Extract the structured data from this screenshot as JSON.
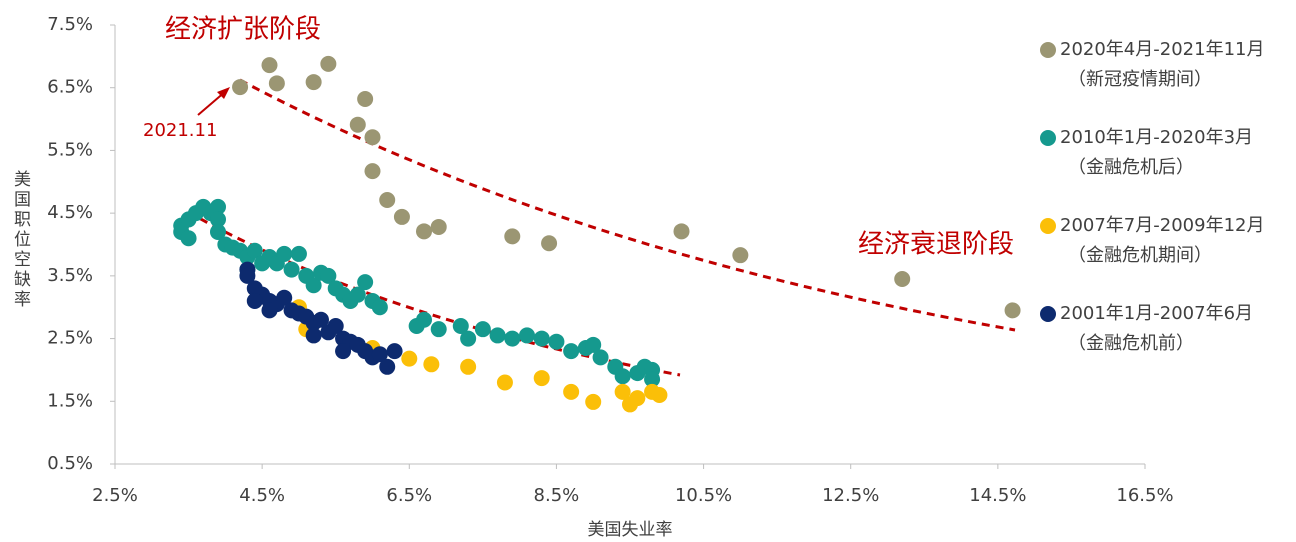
{
  "chart_data": {
    "type": "scatter",
    "xlabel": "美国失业率",
    "ylabel": "美国职位空缺率",
    "annotations": [
      "经济扩张阶段",
      "经济衰退阶段",
      "2021.11"
    ],
    "xlim": [
      2.5,
      16.5
    ],
    "xticks": [
      {
        "value": 2.5,
        "label": "2.5%"
      },
      {
        "value": 4.5,
        "label": "4.5%"
      },
      {
        "value": 6.5,
        "label": "6.5%"
      },
      {
        "value": 8.5,
        "label": "8.5%"
      },
      {
        "value": 10.5,
        "label": "10.5%"
      },
      {
        "value": 12.5,
        "label": "12.5%"
      },
      {
        "value": 14.5,
        "label": "14.5%"
      },
      {
        "value": 16.5,
        "label": "16.5%"
      }
    ],
    "ylim": [
      0.5,
      7.5
    ],
    "yticks": [
      {
        "value": 0.5,
        "label": "0.5%"
      },
      {
        "value": 1.5,
        "label": "1.5%"
      },
      {
        "value": 2.5,
        "label": "2.5%"
      },
      {
        "value": 3.5,
        "label": "3.5%"
      },
      {
        "value": 4.5,
        "label": "4.5%"
      },
      {
        "value": 5.5,
        "label": "5.5%"
      },
      {
        "value": 6.5,
        "label": "6.5%"
      },
      {
        "value": 7.5,
        "label": "7.5%"
      }
    ],
    "series": [
      {
        "name": "2020年4月-2021年11月",
        "note": "（新冠疫情期间）",
        "color": "#9b9673",
        "x": [
          4.2,
          4.6,
          4.7,
          5.2,
          5.4,
          5.9,
          5.8,
          6.0,
          6.0,
          6.2,
          6.4,
          6.7,
          6.9,
          7.9,
          8.4,
          10.2,
          11.0,
          13.2,
          14.7
        ],
        "values": [
          6.51,
          6.86,
          6.57,
          6.59,
          6.88,
          6.32,
          5.91,
          5.71,
          5.17,
          4.71,
          4.44,
          4.21,
          4.28,
          4.13,
          4.02,
          4.21,
          3.83,
          3.45,
          2.95
        ]
      },
      {
        "name": "2010年1月-2020年3月",
        "note": "（金融危机后）",
        "color": "#15998e",
        "x": [
          3.4,
          3.4,
          3.5,
          3.5,
          3.6,
          3.7,
          3.8,
          3.9,
          3.9,
          3.9,
          4.0,
          4.1,
          4.2,
          4.3,
          4.3,
          4.4,
          4.5,
          4.6,
          4.7,
          4.8,
          4.9,
          5.0,
          5.1,
          5.2,
          5.3,
          5.4,
          5.5,
          5.6,
          5.7,
          5.8,
          5.9,
          6.0,
          6.1,
          6.6,
          6.7,
          6.9,
          7.2,
          7.3,
          7.5,
          7.7,
          7.9,
          8.1,
          8.3,
          8.5,
          8.7,
          8.9,
          9.0,
          9.1,
          9.3,
          9.4,
          9.6,
          9.7,
          9.8,
          9.8
        ],
        "values": [
          4.3,
          4.2,
          4.4,
          4.1,
          4.5,
          4.6,
          4.5,
          4.6,
          4.4,
          4.2,
          4.0,
          3.95,
          3.9,
          3.8,
          3.6,
          3.9,
          3.7,
          3.8,
          3.7,
          3.85,
          3.6,
          3.85,
          3.5,
          3.35,
          3.55,
          3.5,
          3.3,
          3.2,
          3.1,
          3.2,
          3.4,
          3.1,
          3.0,
          2.7,
          2.8,
          2.65,
          2.7,
          2.5,
          2.65,
          2.55,
          2.5,
          2.55,
          2.5,
          2.45,
          2.3,
          2.35,
          2.4,
          2.2,
          2.05,
          1.9,
          1.95,
          2.05,
          2.0,
          1.85
        ]
      },
      {
        "name": "2007年7月-2009年12月",
        "note": "（金融危机期间）",
        "color": "#fbbf08",
        "x": [
          5.0,
          5.1,
          6.0,
          6.5,
          6.8,
          7.3,
          7.8,
          8.3,
          8.7,
          9.0,
          9.4,
          9.5,
          9.6,
          9.8,
          9.9
        ],
        "values": [
          3.0,
          2.65,
          2.35,
          2.18,
          2.09,
          2.05,
          1.8,
          1.87,
          1.65,
          1.49,
          1.65,
          1.45,
          1.55,
          1.65,
          1.6
        ]
      },
      {
        "name": "2001年1月-2007年6月",
        "note": "（金融危机前）",
        "color": "#0d2a6e",
        "x": [
          4.3,
          4.3,
          4.4,
          4.5,
          4.6,
          4.7,
          4.8,
          4.9,
          5.0,
          5.1,
          5.2,
          5.3,
          5.4,
          5.5,
          5.6,
          5.7,
          5.8,
          5.9,
          6.0,
          6.1,
          6.2,
          6.3,
          4.4,
          4.6,
          5.2,
          5.6
        ],
        "values": [
          3.6,
          3.5,
          3.3,
          3.2,
          3.1,
          3.05,
          3.15,
          2.95,
          2.9,
          2.85,
          2.75,
          2.8,
          2.6,
          2.7,
          2.5,
          2.45,
          2.4,
          2.3,
          2.2,
          2.25,
          2.05,
          2.3,
          3.1,
          2.95,
          2.55,
          2.3
        ]
      }
    ]
  }
}
